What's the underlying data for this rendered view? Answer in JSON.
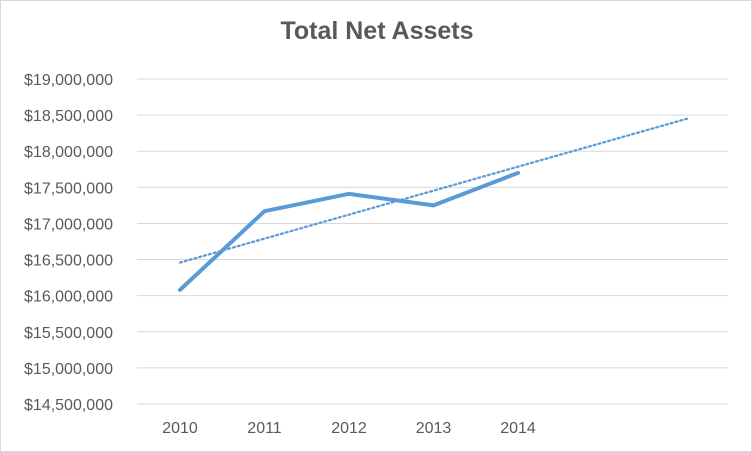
{
  "chart_data": {
    "type": "line",
    "title": "Total Net Assets",
    "xlabel": "",
    "ylabel": "",
    "categories": [
      "2010",
      "2011",
      "2012",
      "2013",
      "2014"
    ],
    "series": [
      {
        "values": [
          16080000,
          17170000,
          17410000,
          17250000,
          17700000
        ],
        "color": "#5b9bd5"
      }
    ],
    "trendline": {
      "style": "dotted",
      "color": "#5b9bd5",
      "type": "linear",
      "forward_forecast_periods": 2
    },
    "ylim": [
      14500000,
      19000000
    ],
    "ytick_step": 500000,
    "y_tick_labels": [
      "$19,000,000",
      "$18,500,000",
      "$18,000,000",
      "$17,500,000",
      "$17,000,000",
      "$16,500,000",
      "$16,000,000",
      "$15,500,000",
      "$15,000,000",
      "$14,500,000"
    ],
    "grid": true,
    "legend": "none",
    "gridline_color": "#d9d9d9"
  }
}
